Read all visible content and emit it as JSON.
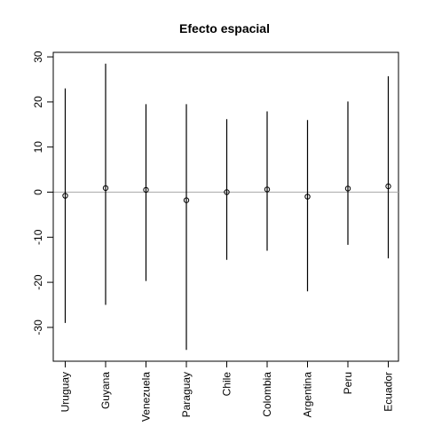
{
  "chart_data": {
    "type": "scatter",
    "title": "Efecto espacial",
    "xlabel": "",
    "ylabel": "",
    "categories": [
      "Uruguay",
      "Guyana",
      "Venezuela",
      "Paraguay",
      "Chile",
      "Colombia",
      "Argentina",
      "Peru",
      "Ecuador"
    ],
    "series": [
      {
        "values": [
          -0.8,
          0.9,
          0.5,
          -1.8,
          0.0,
          0.6,
          -1.0,
          0.8,
          1.3
        ],
        "lower": [
          -29.0,
          -25.0,
          -19.7,
          -35.0,
          -15.0,
          -13.0,
          -22.0,
          -11.7,
          -14.7
        ],
        "upper": [
          23.0,
          28.5,
          19.5,
          19.5,
          16.2,
          17.9,
          16.0,
          20.1,
          25.7
        ]
      }
    ],
    "yticks": [
      30,
      20,
      10,
      0,
      -10,
      -20,
      -30
    ],
    "ytick_labels": [
      "30",
      "20",
      "10",
      "0",
      "-10",
      "-20",
      "-30"
    ],
    "ylim": [
      -37.5,
      31
    ],
    "reference_line": 0,
    "reference_line_color": "#aaaaaa",
    "grid": false
  }
}
